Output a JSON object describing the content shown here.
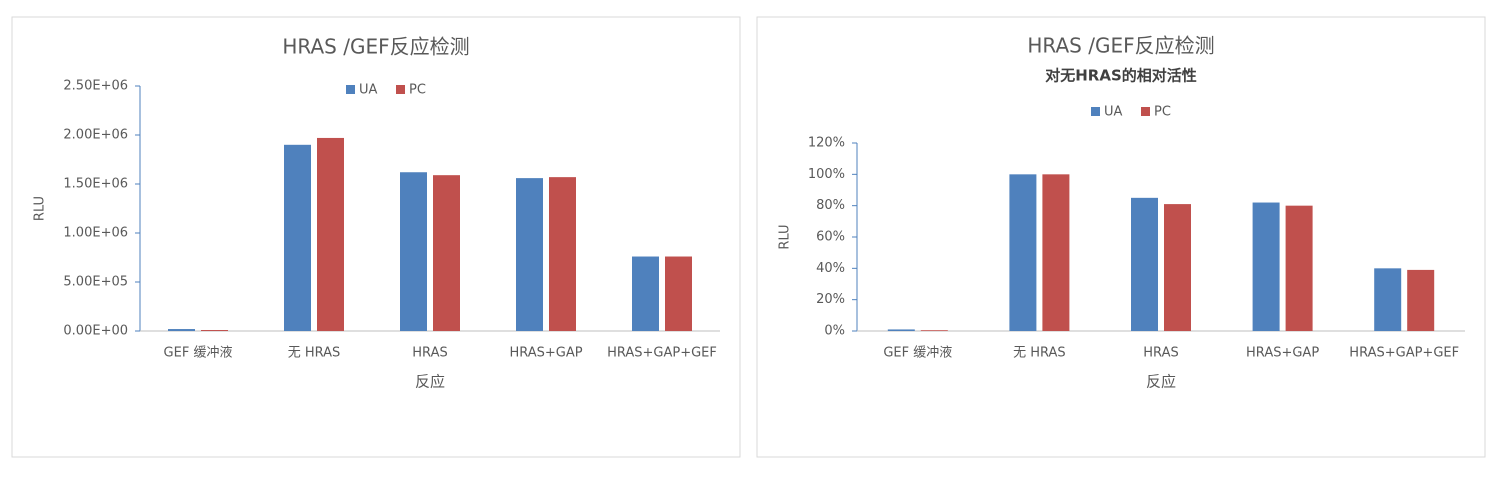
{
  "chart_data": [
    {
      "type": "bar",
      "title": "HRAS /GEF反应检测",
      "y_label": "RLU",
      "x_label": "反应",
      "categories": [
        "GEF 缓冲液",
        "无 HRAS",
        "HRAS",
        "HRAS+GAP",
        "HRAS+GAP+GEF"
      ],
      "series": [
        {
          "name": "UA",
          "color": "#4f81bd",
          "values": [
            20000,
            1900000,
            1620000,
            1560000,
            760000
          ]
        },
        {
          "name": "PC",
          "color": "#c0504d",
          "values": [
            10000,
            1970000,
            1590000,
            1570000,
            760000
          ]
        }
      ],
      "ylim": [
        0,
        2500000
      ],
      "yticks": [
        {
          "value": 0,
          "label": "0.00E+00"
        },
        {
          "value": 500000,
          "label": "5.00E+05"
        },
        {
          "value": 1000000,
          "label": "1.00E+06"
        },
        {
          "value": 1500000,
          "label": "1.50E+06"
        },
        {
          "value": 2000000,
          "label": "2.00E+06"
        },
        {
          "value": 2500000,
          "label": "2.50E+06"
        }
      ],
      "legend": "top"
    },
    {
      "type": "bar",
      "title": "HRAS /GEF反应检测",
      "subtitle": "对无HRAS的相对活性",
      "y_label": "RLU",
      "x_label": "反应",
      "categories": [
        "GEF 缓冲液",
        "无 HRAS",
        "HRAS",
        "HRAS+GAP",
        "HRAS+GAP+GEF"
      ],
      "series": [
        {
          "name": "UA",
          "color": "#4f81bd",
          "values": [
            1,
            100,
            85,
            82,
            40
          ]
        },
        {
          "name": "PC",
          "color": "#c0504d",
          "values": [
            0.5,
            100,
            81,
            80,
            39
          ]
        }
      ],
      "ylim": [
        0,
        120
      ],
      "yticks": [
        {
          "value": 0,
          "label": "0%"
        },
        {
          "value": 20,
          "label": "20%"
        },
        {
          "value": 40,
          "label": "40%"
        },
        {
          "value": 60,
          "label": "60%"
        },
        {
          "value": 80,
          "label": "80%"
        },
        {
          "value": 100,
          "label": "100%"
        },
        {
          "value": 120,
          "label": "120%"
        }
      ],
      "legend": "top"
    }
  ]
}
